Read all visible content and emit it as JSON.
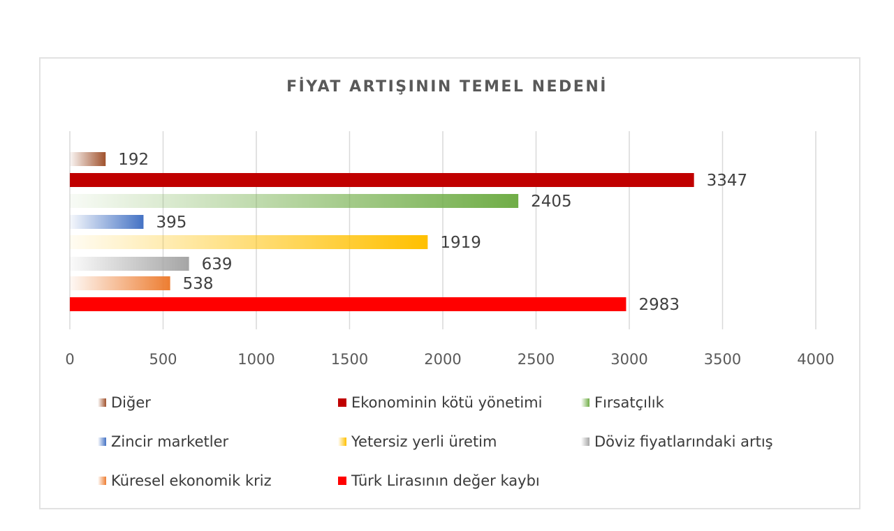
{
  "chart_data": {
    "type": "bar",
    "orientation": "horizontal",
    "title": "FİYAT ARTIŞININ TEMEL NEDENİ",
    "xlabel": "",
    "ylabel": "",
    "xlim": [
      0,
      4000
    ],
    "xticks": [
      0,
      500,
      1000,
      1500,
      2000,
      2500,
      3000,
      3500,
      4000
    ],
    "grid": true,
    "legend_position": "bottom",
    "series": [
      {
        "name": "Diğer",
        "value": 192,
        "color": "#a0522d"
      },
      {
        "name": "Ekonominin kötü yönetimi",
        "value": 3347,
        "color": "#c00000"
      },
      {
        "name": "Fırsatçılık",
        "value": 2405,
        "color": "#70ad47"
      },
      {
        "name": "Zincir marketler",
        "value": 395,
        "color": "#4472c4"
      },
      {
        "name": "Yetersiz yerli üretim",
        "value": 1919,
        "color": "#ffc000"
      },
      {
        "name": "Döviz fiyatlarındaki artış",
        "value": 639,
        "color": "#a5a5a5"
      },
      {
        "name": "Küresel ekonomik kriz",
        "value": 538,
        "color": "#ed7d31"
      },
      {
        "name": "Türk Lirasının değer kaybı",
        "value": 2983,
        "color": "#ff0000"
      }
    ]
  }
}
